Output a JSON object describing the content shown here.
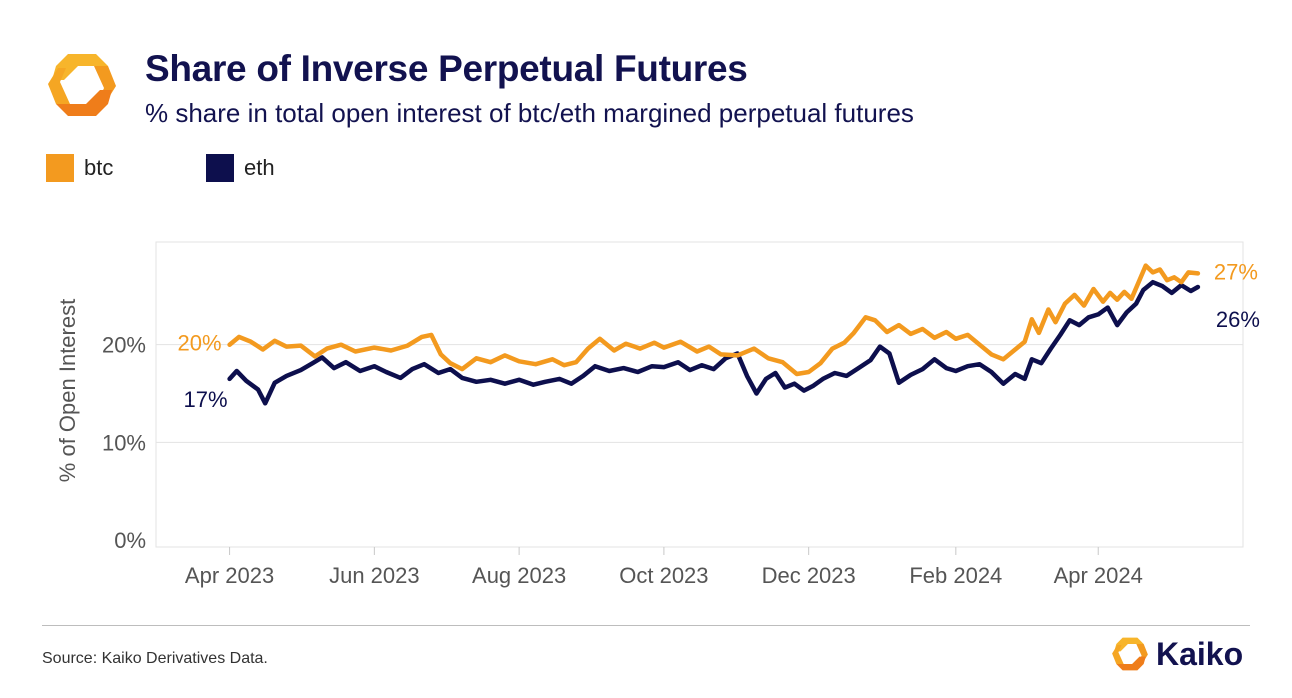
{
  "header": {
    "title": "Share of Inverse Perpetual Futures",
    "subtitle": "% share in total open interest of btc/eth margined perpetual futures"
  },
  "legend": {
    "items": [
      {
        "label": "btc",
        "color": "#f39a1f"
      },
      {
        "label": "eth",
        "color": "#0d0f4d"
      }
    ]
  },
  "footer": {
    "source": "Source: Kaiko Derivatives Data.",
    "brand": "Kaiko"
  },
  "colors": {
    "btc": "#f39a1f",
    "eth": "#0d0f4d",
    "title": "#12124f",
    "axis_text": "#555555",
    "grid": "#e3e3e3"
  },
  "icons": [
    "kaiko-logo-icon",
    "kaiko-brand-icon"
  ],
  "chart_data": {
    "type": "line",
    "ylabel": "% of Open Interest",
    "ylim": [
      0,
      30
    ],
    "yticks": [
      {
        "value": 0,
        "label": "0%"
      },
      {
        "value": 10,
        "label": "10%"
      },
      {
        "value": 20,
        "label": "20%"
      }
    ],
    "xlim": [
      "2023-03-01",
      "2024-06-01"
    ],
    "xticks": [
      {
        "date": "2023-04-01",
        "label": "Apr 2023"
      },
      {
        "date": "2023-06-01",
        "label": "Jun 2023"
      },
      {
        "date": "2023-08-01",
        "label": "Aug 2023"
      },
      {
        "date": "2023-10-01",
        "label": "Oct 2023"
      },
      {
        "date": "2023-12-01",
        "label": "Dec 2023"
      },
      {
        "date": "2024-02-01",
        "label": "Feb 2024"
      },
      {
        "date": "2024-04-01",
        "label": "Apr 2024"
      }
    ],
    "grid": true,
    "legend_position": "top-left",
    "series": [
      {
        "name": "btc",
        "color": "#f39a1f",
        "start_label": "20%",
        "end_label": "27%",
        "points": [
          [
            "2023-04-01",
            20.0
          ],
          [
            "2023-04-05",
            20.8
          ],
          [
            "2023-04-10",
            20.3
          ],
          [
            "2023-04-15",
            19.5
          ],
          [
            "2023-04-20",
            20.4
          ],
          [
            "2023-04-25",
            19.8
          ],
          [
            "2023-05-01",
            19.9
          ],
          [
            "2023-05-07",
            18.8
          ],
          [
            "2023-05-12",
            19.6
          ],
          [
            "2023-05-18",
            20.0
          ],
          [
            "2023-05-24",
            19.3
          ],
          [
            "2023-06-01",
            19.7
          ],
          [
            "2023-06-08",
            19.4
          ],
          [
            "2023-06-15",
            19.9
          ],
          [
            "2023-06-21",
            20.8
          ],
          [
            "2023-06-25",
            21.0
          ],
          [
            "2023-06-29",
            19.0
          ],
          [
            "2023-07-03",
            18.1
          ],
          [
            "2023-07-08",
            17.5
          ],
          [
            "2023-07-14",
            18.6
          ],
          [
            "2023-07-20",
            18.2
          ],
          [
            "2023-07-26",
            18.9
          ],
          [
            "2023-08-01",
            18.3
          ],
          [
            "2023-08-08",
            18.0
          ],
          [
            "2023-08-15",
            18.5
          ],
          [
            "2023-08-20",
            17.9
          ],
          [
            "2023-08-25",
            18.2
          ],
          [
            "2023-08-30",
            19.6
          ],
          [
            "2023-09-04",
            20.6
          ],
          [
            "2023-09-10",
            19.4
          ],
          [
            "2023-09-15",
            20.1
          ],
          [
            "2023-09-21",
            19.6
          ],
          [
            "2023-09-27",
            20.2
          ],
          [
            "2023-10-01",
            19.7
          ],
          [
            "2023-10-08",
            20.3
          ],
          [
            "2023-10-15",
            19.3
          ],
          [
            "2023-10-20",
            19.8
          ],
          [
            "2023-10-25",
            19.0
          ],
          [
            "2023-11-01",
            18.9
          ],
          [
            "2023-11-08",
            19.6
          ],
          [
            "2023-11-14",
            18.6
          ],
          [
            "2023-11-20",
            18.2
          ],
          [
            "2023-11-26",
            17.0
          ],
          [
            "2023-12-01",
            17.2
          ],
          [
            "2023-12-06",
            18.1
          ],
          [
            "2023-12-11",
            19.6
          ],
          [
            "2023-12-16",
            20.2
          ],
          [
            "2023-12-20",
            21.2
          ],
          [
            "2023-12-25",
            22.8
          ],
          [
            "2023-12-29",
            22.5
          ],
          [
            "2024-01-03",
            21.3
          ],
          [
            "2024-01-08",
            22.0
          ],
          [
            "2024-01-13",
            21.1
          ],
          [
            "2024-01-18",
            21.6
          ],
          [
            "2024-01-23",
            20.7
          ],
          [
            "2024-01-28",
            21.3
          ],
          [
            "2024-02-01",
            20.6
          ],
          [
            "2024-02-06",
            21.0
          ],
          [
            "2024-02-11",
            20.0
          ],
          [
            "2024-02-16",
            19.0
          ],
          [
            "2024-02-21",
            18.5
          ],
          [
            "2024-02-26",
            19.5
          ],
          [
            "2024-03-01",
            20.3
          ],
          [
            "2024-03-04",
            22.6
          ],
          [
            "2024-03-07",
            21.2
          ],
          [
            "2024-03-11",
            23.6
          ],
          [
            "2024-03-14",
            22.3
          ],
          [
            "2024-03-18",
            24.2
          ],
          [
            "2024-03-22",
            25.1
          ],
          [
            "2024-03-26",
            24.0
          ],
          [
            "2024-03-30",
            25.7
          ],
          [
            "2024-04-03",
            24.4
          ],
          [
            "2024-04-06",
            25.3
          ],
          [
            "2024-04-09",
            24.6
          ],
          [
            "2024-04-12",
            25.4
          ],
          [
            "2024-04-15",
            24.7
          ],
          [
            "2024-04-18",
            26.4
          ],
          [
            "2024-04-21",
            28.1
          ],
          [
            "2024-04-24",
            27.4
          ],
          [
            "2024-04-27",
            27.7
          ],
          [
            "2024-04-30",
            26.6
          ],
          [
            "2024-05-03",
            26.9
          ],
          [
            "2024-05-06",
            26.4
          ],
          [
            "2024-05-09",
            27.4
          ],
          [
            "2024-05-13",
            27.3
          ]
        ]
      },
      {
        "name": "eth",
        "color": "#0d0f4d",
        "start_label": "17%",
        "end_label": "26%",
        "points": [
          [
            "2023-04-01",
            16.5
          ],
          [
            "2023-04-04",
            17.3
          ],
          [
            "2023-04-08",
            16.3
          ],
          [
            "2023-04-13",
            15.4
          ],
          [
            "2023-04-16",
            14.0
          ],
          [
            "2023-04-20",
            16.1
          ],
          [
            "2023-04-25",
            16.8
          ],
          [
            "2023-05-01",
            17.4
          ],
          [
            "2023-05-06",
            18.1
          ],
          [
            "2023-05-10",
            18.7
          ],
          [
            "2023-05-15",
            17.6
          ],
          [
            "2023-05-20",
            18.2
          ],
          [
            "2023-05-26",
            17.3
          ],
          [
            "2023-06-01",
            17.8
          ],
          [
            "2023-06-06",
            17.2
          ],
          [
            "2023-06-12",
            16.6
          ],
          [
            "2023-06-17",
            17.5
          ],
          [
            "2023-06-22",
            18.0
          ],
          [
            "2023-06-28",
            17.1
          ],
          [
            "2023-07-03",
            17.5
          ],
          [
            "2023-07-08",
            16.6
          ],
          [
            "2023-07-14",
            16.2
          ],
          [
            "2023-07-20",
            16.4
          ],
          [
            "2023-07-26",
            16.0
          ],
          [
            "2023-08-01",
            16.4
          ],
          [
            "2023-08-07",
            15.9
          ],
          [
            "2023-08-12",
            16.2
          ],
          [
            "2023-08-18",
            16.5
          ],
          [
            "2023-08-23",
            16.0
          ],
          [
            "2023-08-28",
            16.8
          ],
          [
            "2023-09-02",
            17.8
          ],
          [
            "2023-09-08",
            17.3
          ],
          [
            "2023-09-14",
            17.6
          ],
          [
            "2023-09-20",
            17.2
          ],
          [
            "2023-09-26",
            17.8
          ],
          [
            "2023-10-01",
            17.7
          ],
          [
            "2023-10-07",
            18.2
          ],
          [
            "2023-10-12",
            17.4
          ],
          [
            "2023-10-17",
            17.9
          ],
          [
            "2023-10-22",
            17.5
          ],
          [
            "2023-10-27",
            18.6
          ],
          [
            "2023-11-01",
            19.1
          ],
          [
            "2023-11-05",
            16.8
          ],
          [
            "2023-11-09",
            15.0
          ],
          [
            "2023-11-13",
            16.5
          ],
          [
            "2023-11-17",
            17.1
          ],
          [
            "2023-11-21",
            15.6
          ],
          [
            "2023-11-25",
            16.0
          ],
          [
            "2023-11-29",
            15.3
          ],
          [
            "2023-12-03",
            15.8
          ],
          [
            "2023-12-07",
            16.5
          ],
          [
            "2023-12-12",
            17.1
          ],
          [
            "2023-12-17",
            16.8
          ],
          [
            "2023-12-22",
            17.6
          ],
          [
            "2023-12-27",
            18.4
          ],
          [
            "2023-12-31",
            19.8
          ],
          [
            "2024-01-04",
            19.1
          ],
          [
            "2024-01-08",
            16.1
          ],
          [
            "2024-01-13",
            16.9
          ],
          [
            "2024-01-18",
            17.5
          ],
          [
            "2024-01-23",
            18.5
          ],
          [
            "2024-01-28",
            17.6
          ],
          [
            "2024-02-01",
            17.3
          ],
          [
            "2024-02-06",
            17.8
          ],
          [
            "2024-02-11",
            18.0
          ],
          [
            "2024-02-16",
            17.2
          ],
          [
            "2024-02-21",
            16.0
          ],
          [
            "2024-02-26",
            17.0
          ],
          [
            "2024-03-01",
            16.5
          ],
          [
            "2024-03-04",
            18.5
          ],
          [
            "2024-03-08",
            18.1
          ],
          [
            "2024-03-12",
            19.6
          ],
          [
            "2024-03-16",
            21.0
          ],
          [
            "2024-03-20",
            22.5
          ],
          [
            "2024-03-24",
            22.0
          ],
          [
            "2024-03-28",
            22.8
          ],
          [
            "2024-04-01",
            23.1
          ],
          [
            "2024-04-05",
            23.8
          ],
          [
            "2024-04-09",
            22.0
          ],
          [
            "2024-04-13",
            23.3
          ],
          [
            "2024-04-17",
            24.2
          ],
          [
            "2024-04-20",
            25.6
          ],
          [
            "2024-04-24",
            26.4
          ],
          [
            "2024-04-28",
            26.0
          ],
          [
            "2024-05-02",
            25.3
          ],
          [
            "2024-05-06",
            26.1
          ],
          [
            "2024-05-10",
            25.5
          ],
          [
            "2024-05-13",
            25.9
          ]
        ]
      }
    ]
  }
}
